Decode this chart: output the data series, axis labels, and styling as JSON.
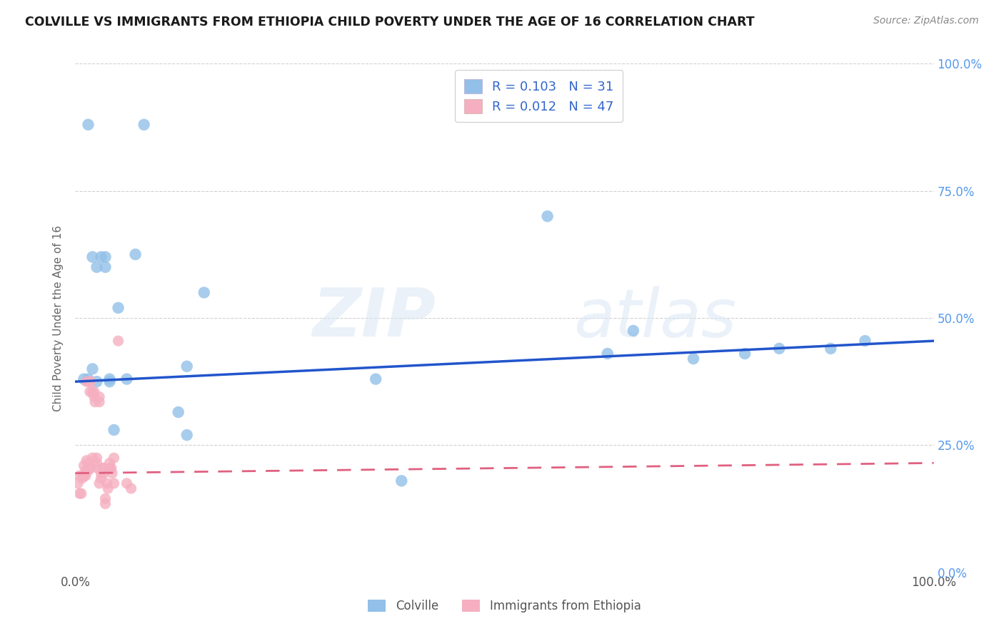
{
  "title": "COLVILLE VS IMMIGRANTS FROM ETHIOPIA CHILD POVERTY UNDER THE AGE OF 16 CORRELATION CHART",
  "source": "Source: ZipAtlas.com",
  "ylabel": "Child Poverty Under the Age of 16",
  "xlim": [
    0,
    1
  ],
  "ylim": [
    0,
    1
  ],
  "colville_color": "#92c0e8",
  "ethiopia_color": "#f5afc0",
  "colville_line_color": "#2255cc",
  "ethiopia_line_color": "#e06080",
  "watermark_zip": "ZIP",
  "watermark_atlas": "atlas",
  "colville_x": [
    0.01,
    0.015,
    0.02,
    0.025,
    0.03,
    0.035,
    0.04,
    0.045,
    0.05,
    0.07,
    0.08,
    0.12,
    0.13,
    0.15,
    0.35,
    0.38,
    0.55,
    0.62,
    0.65,
    0.72,
    0.78,
    0.82,
    0.88,
    0.92,
    0.015,
    0.02,
    0.025,
    0.04,
    0.035,
    0.06,
    0.13
  ],
  "colville_y": [
    0.38,
    0.38,
    0.4,
    0.375,
    0.62,
    0.6,
    0.375,
    0.28,
    0.52,
    0.625,
    0.88,
    0.315,
    0.405,
    0.55,
    0.38,
    0.18,
    0.7,
    0.43,
    0.475,
    0.42,
    0.43,
    0.44,
    0.44,
    0.455,
    0.88,
    0.62,
    0.6,
    0.38,
    0.62,
    0.38,
    0.27
  ],
  "ethiopia_x": [
    0.003,
    0.005,
    0.005,
    0.007,
    0.008,
    0.009,
    0.01,
    0.01,
    0.012,
    0.012,
    0.013,
    0.013,
    0.015,
    0.015,
    0.016,
    0.017,
    0.018,
    0.018,
    0.02,
    0.02,
    0.022,
    0.022,
    0.023,
    0.025,
    0.025,
    0.026,
    0.028,
    0.028,
    0.028,
    0.03,
    0.03,
    0.032,
    0.033,
    0.033,
    0.035,
    0.035,
    0.037,
    0.038,
    0.04,
    0.04,
    0.042,
    0.043,
    0.045,
    0.045,
    0.05,
    0.06,
    0.065
  ],
  "ethiopia_y": [
    0.175,
    0.19,
    0.155,
    0.155,
    0.185,
    0.19,
    0.19,
    0.21,
    0.2,
    0.19,
    0.375,
    0.22,
    0.215,
    0.2,
    0.375,
    0.355,
    0.375,
    0.205,
    0.225,
    0.355,
    0.355,
    0.345,
    0.335,
    0.215,
    0.225,
    0.205,
    0.335,
    0.345,
    0.175,
    0.185,
    0.195,
    0.205,
    0.195,
    0.205,
    0.135,
    0.145,
    0.175,
    0.165,
    0.205,
    0.215,
    0.205,
    0.195,
    0.225,
    0.175,
    0.455,
    0.175,
    0.165
  ],
  "colville_trend_x": [
    0.0,
    1.0
  ],
  "colville_trend_y": [
    0.375,
    0.455
  ],
  "ethiopia_trend_x": [
    0.0,
    1.0
  ],
  "ethiopia_trend_y": [
    0.195,
    0.215
  ],
  "background_color": "#ffffff",
  "grid_color": "#d0d0d0",
  "right_tick_color": "#5599ee"
}
